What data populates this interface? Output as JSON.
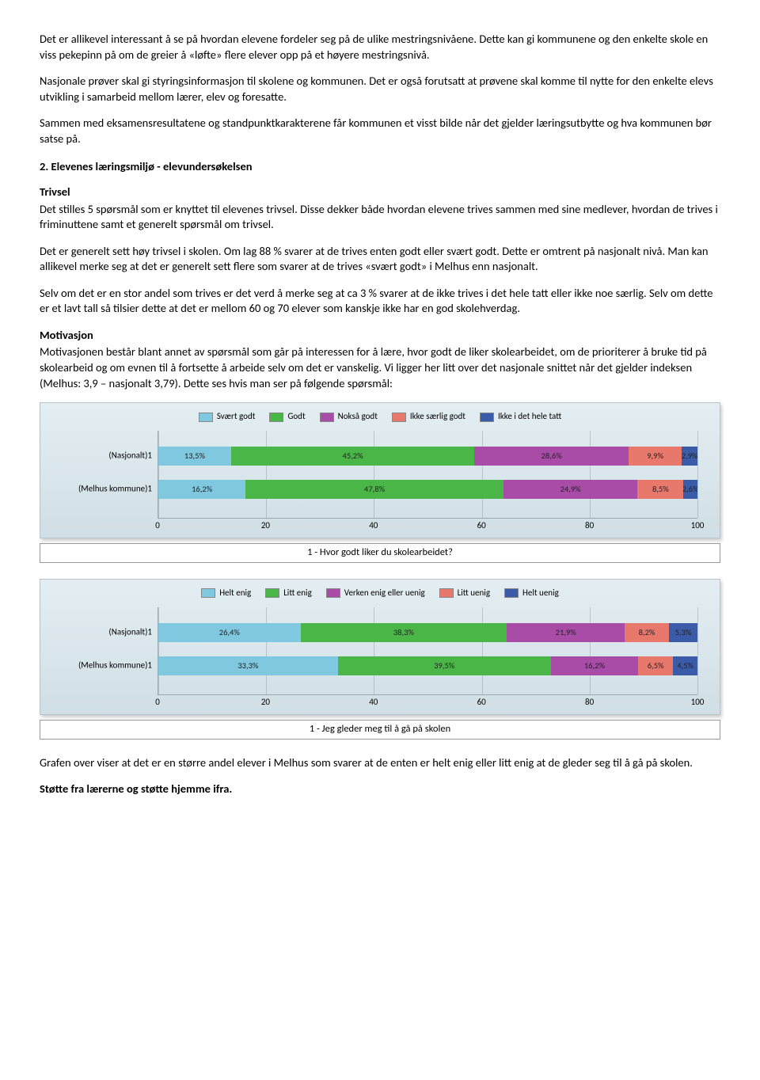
{
  "paragraphs": {
    "p1": "Det er allikevel interessant å se på hvordan elevene fordeler seg på de ulike mestringsnivåene. Dette kan gi kommunene og den enkelte skole en viss pekepinn på om de greier å «løfte» flere elever opp på et høyere mestringsnivå.",
    "p2": "Nasjonale prøver skal gi styringsinformasjon til skolene og kommunen. Det er også forutsatt at prøvene skal komme til nytte for den enkelte elevs utvikling i samarbeid mellom lærer, elev og foresatte.",
    "p3": "Sammen med eksamensresultatene og standpunktkarakterene får kommunen et visst bilde når det gjelder læringsutbytte og hva kommunen bør satse på.",
    "section2": "2.   Elevenes læringsmiljø - elevundersøkelsen",
    "trivsel_head": "Trivsel",
    "trivsel_body": "Det stilles 5 spørsmål som er knyttet til elevenes trivsel. Disse dekker både hvordan elevene trives sammen med sine medlever, hvordan de trives i friminuttene samt et generelt spørsmål om trivsel.",
    "trivsel_body2": "Det er generelt sett høy trivsel i skolen. Om lag 88 % svarer at de trives enten godt eller svært godt. Dette er omtrent på nasjonalt nivå. Man kan allikevel merke seg at det er generelt sett flere som svarer at de trives «svært godt» i Melhus enn nasjonalt.",
    "trivsel_body3": "Selv om det er en stor andel som trives er det verd å merke seg at ca 3 % svarer at de ikke trives i det hele tatt eller ikke noe særlig. Selv om dette er et lavt tall så tilsier dette at det er mellom 60 og 70 elever som kanskje ikke har en god skolehverdag.",
    "motiv_head": "Motivasjon",
    "motiv_body": "Motivasjonen består blant annet av spørsmål som går på interessen for å lære, hvor godt de liker skolearbeidet, om de prioriterer å bruke tid på skolearbeid og om evnen til å fortsette å arbeide selv om det er vanskelig. Vi ligger her litt over det nasjonale snittet når det gjelder indeksen (Melhus: 3,9 – nasjonalt 3,79). Dette ses hvis man ser på følgende spørsmål:",
    "after_charts": "Grafen over viser at det er en større andel elever i Melhus som svarer at de enten er helt enig eller litt enig at de gleder seg til å gå på skolen.",
    "last_head": "Støtte fra lærerne og støtte hjemme ifra."
  },
  "chart1": {
    "legend": [
      {
        "label": "Svært godt",
        "color": "#7fc8e0"
      },
      {
        "label": "Godt",
        "color": "#4bb648"
      },
      {
        "label": "Nokså godt",
        "color": "#a84ca8"
      },
      {
        "label": "Ikke særlig godt",
        "color": "#e8776c"
      },
      {
        "label": "Ikke i det hele tatt",
        "color": "#3a5ca8"
      }
    ],
    "rows": [
      {
        "label": "(Nasjonalt)1",
        "segs": [
          {
            "v": 13.5,
            "t": "13,5%",
            "c": "#7fc8e0"
          },
          {
            "v": 45.2,
            "t": "45,2%",
            "c": "#4bb648"
          },
          {
            "v": 28.6,
            "t": "28,6%",
            "c": "#a84ca8"
          },
          {
            "v": 9.9,
            "t": "9,9%",
            "c": "#e8776c"
          },
          {
            "v": 2.9,
            "t": "2,9%",
            "c": "#3a5ca8"
          }
        ]
      },
      {
        "label": "(Melhus kommune)1",
        "segs": [
          {
            "v": 16.2,
            "t": "16,2%",
            "c": "#7fc8e0"
          },
          {
            "v": 47.8,
            "t": "47,8%",
            "c": "#4bb648"
          },
          {
            "v": 24.9,
            "t": "24,9%",
            "c": "#a84ca8"
          },
          {
            "v": 8.5,
            "t": "8,5%",
            "c": "#e8776c"
          },
          {
            "v": 2.6,
            "t": "2,6%",
            "c": "#3a5ca8"
          }
        ]
      }
    ],
    "xticks": [
      0,
      20,
      40,
      60,
      80,
      100
    ],
    "xlim": [
      0,
      100
    ],
    "caption": "1 - Hvor godt liker du skolearbeidet?"
  },
  "chart2": {
    "legend": [
      {
        "label": "Helt enig",
        "color": "#7fc8e0"
      },
      {
        "label": "Litt enig",
        "color": "#4bb648"
      },
      {
        "label": "Verken enig eller uenig",
        "color": "#a84ca8"
      },
      {
        "label": "Litt uenig",
        "color": "#e8776c"
      },
      {
        "label": "Helt uenig",
        "color": "#3a5ca8"
      }
    ],
    "rows": [
      {
        "label": "(Nasjonalt)1",
        "segs": [
          {
            "v": 26.4,
            "t": "26,4%",
            "c": "#7fc8e0"
          },
          {
            "v": 38.3,
            "t": "38,3%",
            "c": "#4bb648"
          },
          {
            "v": 21.9,
            "t": "21,9%",
            "c": "#a84ca8"
          },
          {
            "v": 8.2,
            "t": "8,2%",
            "c": "#e8776c"
          },
          {
            "v": 5.3,
            "t": "5,3%",
            "c": "#3a5ca8"
          }
        ]
      },
      {
        "label": "(Melhus kommune)1",
        "segs": [
          {
            "v": 33.3,
            "t": "33,3%",
            "c": "#7fc8e0"
          },
          {
            "v": 39.5,
            "t": "39,5%",
            "c": "#4bb648"
          },
          {
            "v": 16.2,
            "t": "16,2%",
            "c": "#a84ca8"
          },
          {
            "v": 6.5,
            "t": "6,5%",
            "c": "#e8776c"
          },
          {
            "v": 4.5,
            "t": "4,5%",
            "c": "#3a5ca8"
          }
        ]
      }
    ],
    "xticks": [
      0,
      20,
      40,
      60,
      80,
      100
    ],
    "xlim": [
      0,
      100
    ],
    "caption": "1 - Jeg gleder meg til å gå på skolen"
  }
}
